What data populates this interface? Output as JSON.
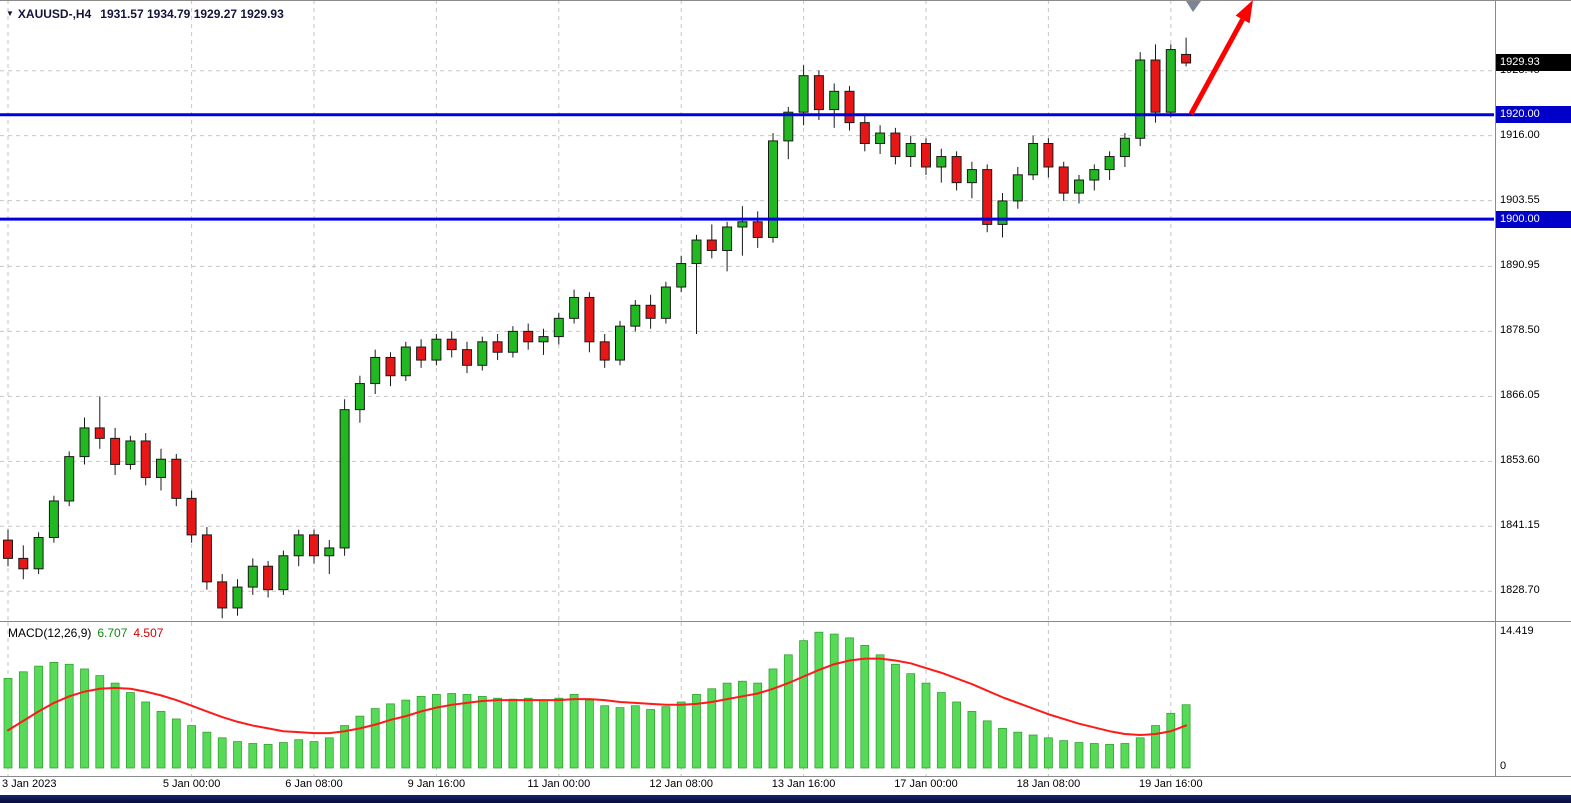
{
  "header": {
    "dropdown_icon": "▼",
    "symbol": "XAUUSD-,H4",
    "ohlc": "1931.57 1934.79 1929.27 1929.93"
  },
  "indicator": {
    "label": "MACD(12,26,9)",
    "macd_value": "6.707",
    "signal_value": "4.507",
    "scale_max": "14.419",
    "scale_min": "0"
  },
  "price_axis": {
    "ticks": [
      "1928.45",
      "1916.00",
      "1903.55",
      "1890.95",
      "1878.50",
      "1866.05",
      "1853.60",
      "1841.15",
      "1828.70"
    ],
    "current": {
      "label": "1929.93",
      "value": 1929.93
    },
    "levels": [
      {
        "label": "1920.00",
        "value": 1920.0
      },
      {
        "label": "1900.00",
        "value": 1900.0
      }
    ]
  },
  "time_axis": {
    "labels": [
      {
        "text": "3 Jan 2023",
        "bar": 0
      },
      {
        "text": "5 Jan 00:00",
        "bar": 12
      },
      {
        "text": "6 Jan 08:00",
        "bar": 20
      },
      {
        "text": "9 Jan 16:00",
        "bar": 28
      },
      {
        "text": "11 Jan 00:00",
        "bar": 36
      },
      {
        "text": "12 Jan 08:00",
        "bar": 44
      },
      {
        "text": "13 Jan 16:00",
        "bar": 52
      },
      {
        "text": "17 Jan 00:00",
        "bar": 60
      },
      {
        "text": "18 Jan 08:00",
        "bar": 68
      },
      {
        "text": "19 Jan 16:00",
        "bar": 76
      }
    ]
  },
  "colors": {
    "bull": "#22b822",
    "bear": "#e81717",
    "candle_border": "#1a1a1a",
    "wick": "#1a1a1a",
    "hist": "#57da57",
    "hist_border": "#2f9e2f",
    "signal": "#ff1a1a",
    "level": "#0000dd",
    "grid": "#c6c6c6",
    "arrow": "#ff0000",
    "badge_current_bg": "#000000",
    "badge_level_bg": "#0000c8"
  },
  "chart_data": {
    "type": "candlestick",
    "title": "XAUUSD- H4 with MACD(12,26,9)",
    "timeframe": "H4",
    "current_ohlc": {
      "open": 1931.57,
      "high": 1934.79,
      "low": 1929.27,
      "close": 1929.93
    },
    "y_axis": {
      "min": 1823,
      "max": 1942
    },
    "horizontal_levels": [
      1920.0,
      1900.0
    ],
    "candles": [
      [
        1838.5,
        1840.5,
        1833.5,
        1835.0
      ],
      [
        1835.0,
        1837.5,
        1831.0,
        1833.0
      ],
      [
        1833.0,
        1840.0,
        1832.0,
        1839.0
      ],
      [
        1839.0,
        1847.0,
        1838.0,
        1846.0
      ],
      [
        1846.0,
        1855.5,
        1845.0,
        1854.5
      ],
      [
        1854.5,
        1862.0,
        1853.0,
        1860.0
      ],
      [
        1860.0,
        1866.0,
        1856.0,
        1858.0
      ],
      [
        1858.0,
        1860.0,
        1851.0,
        1853.0
      ],
      [
        1853.0,
        1858.5,
        1852.0,
        1857.5
      ],
      [
        1857.5,
        1859.0,
        1849.0,
        1850.5
      ],
      [
        1850.5,
        1856.0,
        1848.0,
        1854.0
      ],
      [
        1854.0,
        1855.0,
        1845.0,
        1846.5
      ],
      [
        1846.5,
        1848.0,
        1838.0,
        1839.5
      ],
      [
        1839.5,
        1841.0,
        1829.0,
        1830.5
      ],
      [
        1830.5,
        1832.0,
        1823.5,
        1825.5
      ],
      [
        1825.5,
        1831.0,
        1824.0,
        1829.5
      ],
      [
        1829.5,
        1835.0,
        1828.0,
        1833.5
      ],
      [
        1833.5,
        1834.5,
        1827.5,
        1829.0
      ],
      [
        1829.0,
        1836.5,
        1828.0,
        1835.5
      ],
      [
        1835.5,
        1840.5,
        1833.5,
        1839.5
      ],
      [
        1839.5,
        1840.5,
        1834.0,
        1835.5
      ],
      [
        1835.5,
        1838.5,
        1832.0,
        1837.0
      ],
      [
        1837.0,
        1865.5,
        1835.5,
        1863.5
      ],
      [
        1863.5,
        1870.0,
        1861.0,
        1868.5
      ],
      [
        1868.5,
        1875.0,
        1866.5,
        1873.5
      ],
      [
        1873.5,
        1874.5,
        1868.0,
        1870.0
      ],
      [
        1870.0,
        1876.5,
        1869.0,
        1875.5
      ],
      [
        1875.5,
        1877.0,
        1871.5,
        1873.0
      ],
      [
        1873.0,
        1878.0,
        1872.0,
        1877.0
      ],
      [
        1877.0,
        1878.5,
        1873.5,
        1875.0
      ],
      [
        1875.0,
        1876.5,
        1870.5,
        1872.0
      ],
      [
        1872.0,
        1877.5,
        1871.0,
        1876.5
      ],
      [
        1876.5,
        1878.0,
        1873.0,
        1874.5
      ],
      [
        1874.5,
        1879.5,
        1873.5,
        1878.5
      ],
      [
        1878.5,
        1880.0,
        1875.0,
        1876.5
      ],
      [
        1876.5,
        1879.0,
        1874.0,
        1877.5
      ],
      [
        1877.5,
        1882.0,
        1876.0,
        1881.0
      ],
      [
        1881.0,
        1886.5,
        1880.0,
        1885.0
      ],
      [
        1885.0,
        1886.0,
        1874.5,
        1876.5
      ],
      [
        1876.5,
        1878.0,
        1871.5,
        1873.0
      ],
      [
        1873.0,
        1880.5,
        1872.0,
        1879.5
      ],
      [
        1879.5,
        1884.5,
        1878.5,
        1883.5
      ],
      [
        1883.5,
        1885.5,
        1879.0,
        1881.0
      ],
      [
        1881.0,
        1888.0,
        1880.0,
        1887.0
      ],
      [
        1887.0,
        1893.0,
        1886.0,
        1891.5
      ],
      [
        1891.5,
        1897.0,
        1878.0,
        1896.0
      ],
      [
        1896.0,
        1899.0,
        1892.5,
        1894.0
      ],
      [
        1894.0,
        1899.5,
        1890.0,
        1898.5
      ],
      [
        1898.5,
        1902.5,
        1893.0,
        1899.5
      ],
      [
        1899.5,
        1901.5,
        1894.5,
        1896.5
      ],
      [
        1896.5,
        1916.5,
        1895.5,
        1915.0
      ],
      [
        1915.0,
        1921.5,
        1911.5,
        1920.5
      ],
      [
        1920.5,
        1929.5,
        1918.0,
        1927.5
      ],
      [
        1927.5,
        1928.5,
        1919.0,
        1921.0
      ],
      [
        1921.0,
        1926.0,
        1917.5,
        1924.5
      ],
      [
        1924.5,
        1925.5,
        1917.0,
        1918.5
      ],
      [
        1918.5,
        1920.0,
        1913.0,
        1914.5
      ],
      [
        1914.5,
        1918.0,
        1912.5,
        1916.5
      ],
      [
        1916.5,
        1917.5,
        1910.5,
        1912.0
      ],
      [
        1912.0,
        1916.0,
        1910.0,
        1914.5
      ],
      [
        1914.5,
        1915.5,
        1908.5,
        1910.0
      ],
      [
        1910.0,
        1913.5,
        1907.0,
        1912.0
      ],
      [
        1912.0,
        1913.0,
        1905.5,
        1907.0
      ],
      [
        1907.0,
        1911.0,
        1904.0,
        1909.5
      ],
      [
        1909.5,
        1910.5,
        1897.5,
        1899.0
      ],
      [
        1899.0,
        1905.0,
        1896.5,
        1903.5
      ],
      [
        1903.5,
        1910.0,
        1902.0,
        1908.5
      ],
      [
        1908.5,
        1916.0,
        1907.5,
        1914.5
      ],
      [
        1914.5,
        1915.5,
        1908.0,
        1910.0
      ],
      [
        1910.0,
        1911.0,
        1903.5,
        1905.0
      ],
      [
        1905.0,
        1908.5,
        1903.0,
        1907.5
      ],
      [
        1907.5,
        1910.5,
        1905.5,
        1909.5
      ],
      [
        1909.5,
        1913.0,
        1907.5,
        1912.0
      ],
      [
        1912.0,
        1916.5,
        1910.0,
        1915.5
      ],
      [
        1915.5,
        1932.0,
        1914.0,
        1930.5
      ],
      [
        1930.5,
        1933.5,
        1918.5,
        1920.5
      ],
      [
        1920.5,
        1933.5,
        1919.5,
        1932.5
      ],
      [
        1931.57,
        1934.79,
        1929.27,
        1929.93
      ]
    ],
    "macd": {
      "max": 14.419,
      "histogram": [
        9.5,
        10.2,
        10.8,
        11.2,
        11.0,
        10.5,
        9.8,
        9.0,
        8.0,
        7.0,
        6.0,
        5.2,
        4.5,
        3.8,
        3.2,
        2.8,
        2.6,
        2.5,
        2.7,
        3.0,
        2.8,
        3.2,
        4.5,
        5.5,
        6.3,
        6.8,
        7.2,
        7.6,
        7.8,
        7.9,
        7.8,
        7.6,
        7.4,
        7.3,
        7.4,
        7.2,
        7.4,
        7.8,
        7.2,
        6.6,
        6.4,
        6.6,
        6.2,
        6.5,
        7.0,
        7.8,
        8.4,
        9.0,
        9.2,
        9.0,
        10.5,
        12.0,
        13.5,
        14.4,
        14.2,
        13.8,
        13.0,
        12.0,
        11.0,
        10.0,
        9.0,
        8.0,
        7.0,
        6.0,
        5.0,
        4.2,
        3.8,
        3.5,
        3.2,
        2.9,
        2.7,
        2.6,
        2.5,
        2.6,
        3.2,
        4.5,
        5.8,
        6.707
      ],
      "signal": [
        4.0,
        5.0,
        6.0,
        6.9,
        7.6,
        8.1,
        8.4,
        8.5,
        8.4,
        8.1,
        7.7,
        7.2,
        6.6,
        6.0,
        5.4,
        4.9,
        4.5,
        4.2,
        3.9,
        3.8,
        3.7,
        3.7,
        3.9,
        4.2,
        4.6,
        5.1,
        5.5,
        6.0,
        6.4,
        6.7,
        6.9,
        7.1,
        7.2,
        7.2,
        7.2,
        7.2,
        7.2,
        7.3,
        7.3,
        7.2,
        7.0,
        6.9,
        6.8,
        6.7,
        6.7,
        6.8,
        7.0,
        7.3,
        7.6,
        7.9,
        8.4,
        9.0,
        9.7,
        10.4,
        11.0,
        11.4,
        11.6,
        11.6,
        11.4,
        11.1,
        10.6,
        10.1,
        9.5,
        8.9,
        8.2,
        7.5,
        6.9,
        6.3,
        5.7,
        5.2,
        4.7,
        4.3,
        3.9,
        3.6,
        3.5,
        3.6,
        3.9,
        4.507
      ]
    }
  }
}
